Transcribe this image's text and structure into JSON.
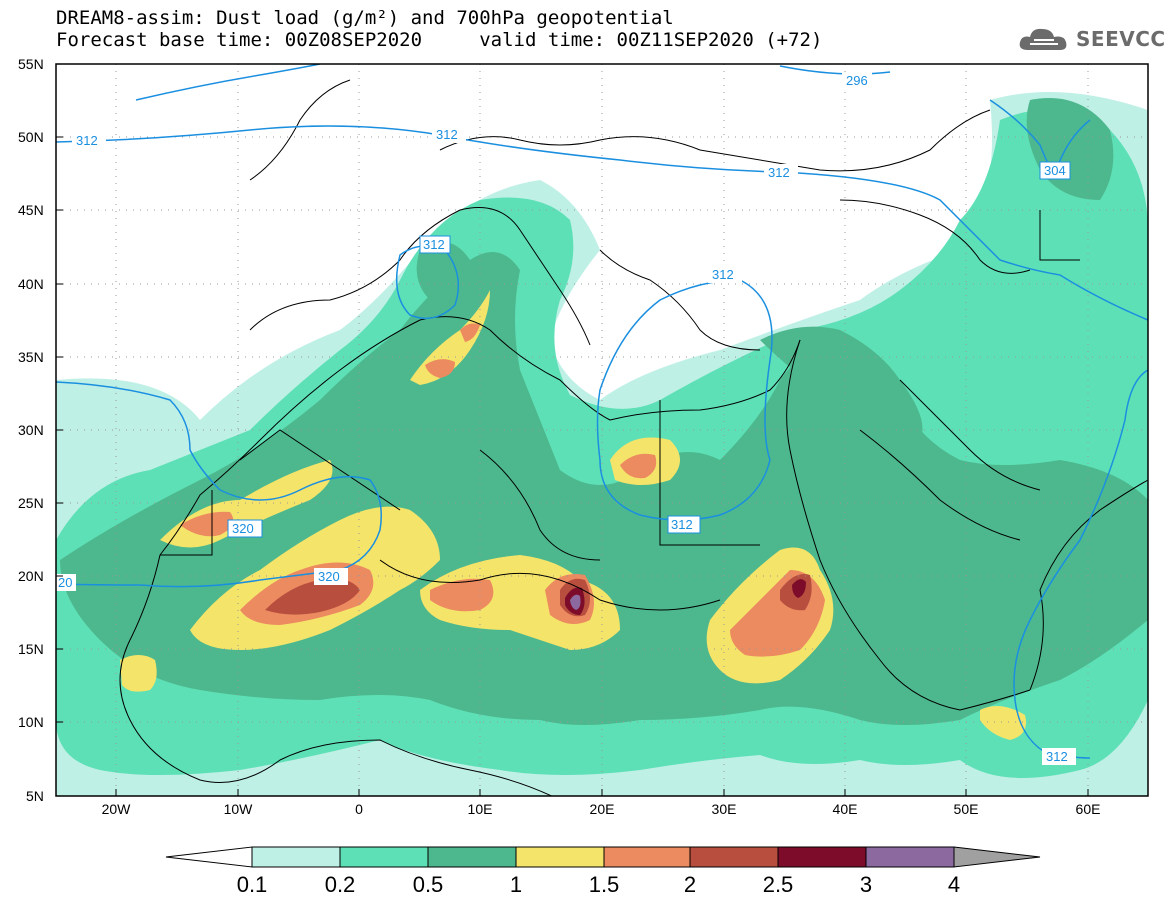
{
  "title": {
    "line1": "DREAM8-assim: Dust load (g/m²) and 700hPa geopotential",
    "line2": "Forecast base time: 00Z08SEP2020     valid time: 00Z11SEP2020 (+72)"
  },
  "logo": {
    "text": "SEEVCCC",
    "icon": "cloud-logo-icon"
  },
  "map": {
    "lat_labels": [
      "55N",
      "50N",
      "45N",
      "40N",
      "35N",
      "30N",
      "25N",
      "20N",
      "15N",
      "10N",
      "5N"
    ],
    "lon_labels": [
      "20W",
      "10W",
      "0",
      "10E",
      "20E",
      "30E",
      "40E",
      "50E",
      "60E"
    ],
    "geopotential_labels": [
      "296",
      "312",
      "312",
      "304",
      "312",
      "312",
      "320",
      "320",
      "312",
      "312",
      "20",
      "312"
    ],
    "colors": {
      "background": "#ffffff",
      "contour": "#1a8fe0",
      "coast": "#000000"
    }
  },
  "colorbar": {
    "labels": [
      "0.1",
      "0.2",
      "0.5",
      "1",
      "1.5",
      "2",
      "2.5",
      "3",
      "4"
    ],
    "colors": [
      "#bff0e6",
      "#5ee0b6",
      "#4db88e",
      "#f5e46a",
      "#ec8a60",
      "#b84e3e",
      "#7d0c2a",
      "#8c6aa0"
    ],
    "under_color": "#ffffff",
    "over_color": "#a0a0a0"
  }
}
